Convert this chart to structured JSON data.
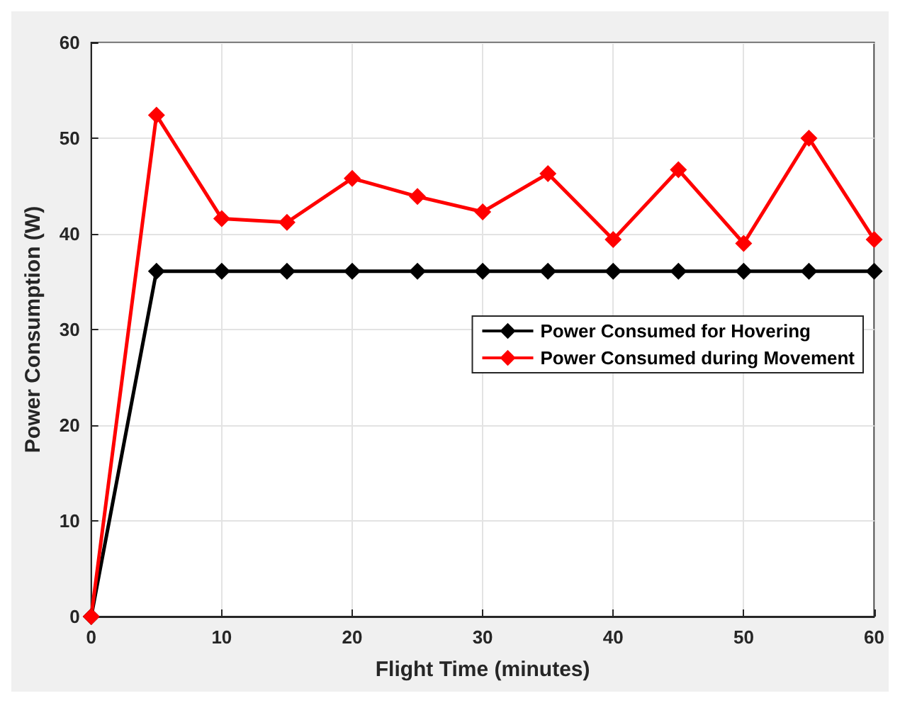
{
  "chart_data": {
    "type": "line",
    "xlabel": "Flight Time (minutes)",
    "ylabel": "Power Consumption (W)",
    "x": [
      0,
      5,
      10,
      15,
      20,
      25,
      30,
      35,
      40,
      45,
      50,
      55,
      60
    ],
    "series": [
      {
        "name": "Power Consumed for Hovering",
        "color": "#000000",
        "values": [
          0,
          36.1,
          36.1,
          36.1,
          36.1,
          36.1,
          36.1,
          36.1,
          36.1,
          36.1,
          36.1,
          36.1,
          36.1
        ]
      },
      {
        "name": "Power Consumed during Movement",
        "color": "#ff0000",
        "values": [
          0,
          52.4,
          41.6,
          41.2,
          45.8,
          43.9,
          42.3,
          46.3,
          39.4,
          46.7,
          39.0,
          50.0,
          39.4
        ]
      }
    ],
    "xlim": [
      0,
      60
    ],
    "xticks": [
      0,
      10,
      20,
      30,
      40,
      50,
      60
    ],
    "ylim": [
      0,
      60
    ],
    "yticks": [
      0,
      10,
      20,
      30,
      40,
      50,
      60
    ],
    "grid": true,
    "legend": "right",
    "marker": "diamond",
    "line_style": "solid"
  }
}
